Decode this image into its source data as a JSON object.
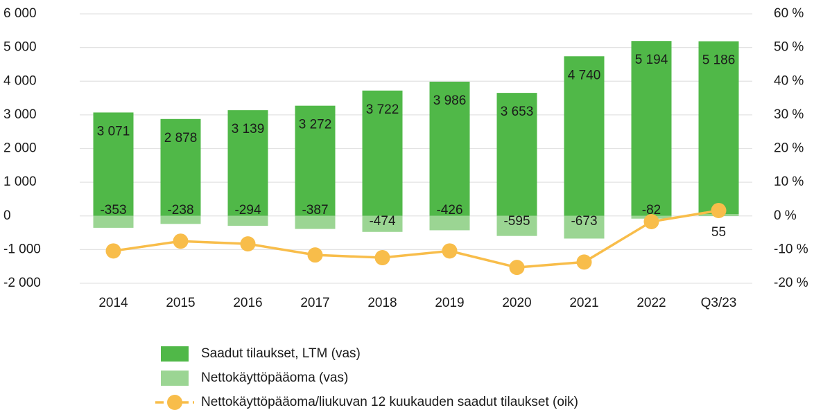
{
  "chart_data": {
    "type": "bar-line",
    "categories": [
      "2014",
      "2015",
      "2016",
      "2017",
      "2018",
      "2019",
      "2020",
      "2021",
      "2022",
      "Q3/23"
    ],
    "series": [
      {
        "name": "Saadut tilaukset, LTM (vas)",
        "color": "#50b848",
        "type": "bar",
        "values": [
          3071,
          2878,
          3139,
          3272,
          3722,
          3986,
          3653,
          4740,
          5194,
          5186
        ],
        "value_labels": [
          "3 071",
          "2 878",
          "3 139",
          "3 272",
          "3 722",
          "3 986",
          "3 653",
          "4 740",
          "5 194",
          "5 186"
        ]
      },
      {
        "name": "Nettokäyttöpääoma (vas)",
        "color": "#9bd593",
        "type": "bar",
        "values": [
          -353,
          -238,
          -294,
          -387,
          -474,
          -426,
          -595,
          -673,
          -82,
          55
        ]
      },
      {
        "name": "Nettokäyttöpääoma/liukuvan 12 kuukauden saadut tilaukset (oik)",
        "color": "#f8bd4a",
        "type": "line",
        "axis": "y2",
        "values": [
          -10.4,
          -7.5,
          -8.3,
          -11.6,
          -12.4,
          -10.4,
          -15.3,
          -13.7,
          -1.7,
          1.6
        ]
      }
    ],
    "ylim": [
      -2000,
      6000
    ],
    "yticks": [
      {
        "value": -2000,
        "label": "-2 000"
      },
      {
        "value": -1000,
        "label": "-1 000"
      },
      0,
      {
        "value": 1000,
        "label": "1 000"
      },
      {
        "value": 2000,
        "label": "2 000"
      },
      {
        "value": 3000,
        "label": "3 000"
      },
      {
        "value": 4000,
        "label": "4 000"
      },
      {
        "value": 5000,
        "label": "5 000"
      },
      {
        "value": 6000,
        "label": "6 000"
      }
    ],
    "y2lim": [
      -20,
      60
    ],
    "y2ticks": [
      {
        "value": -20,
        "label": "-20 %"
      },
      {
        "value": -10,
        "label": "-10 %"
      },
      {
        "value": 0,
        "label": "0 %"
      },
      {
        "value": 10,
        "label": "10 %"
      },
      {
        "value": 20,
        "label": "20 %"
      },
      {
        "value": 30,
        "label": "30 %"
      },
      {
        "value": 40,
        "label": "40 %"
      },
      {
        "value": 50,
        "label": "50 %"
      },
      {
        "value": 60,
        "label": "60 %"
      }
    ],
    "grid": true
  }
}
